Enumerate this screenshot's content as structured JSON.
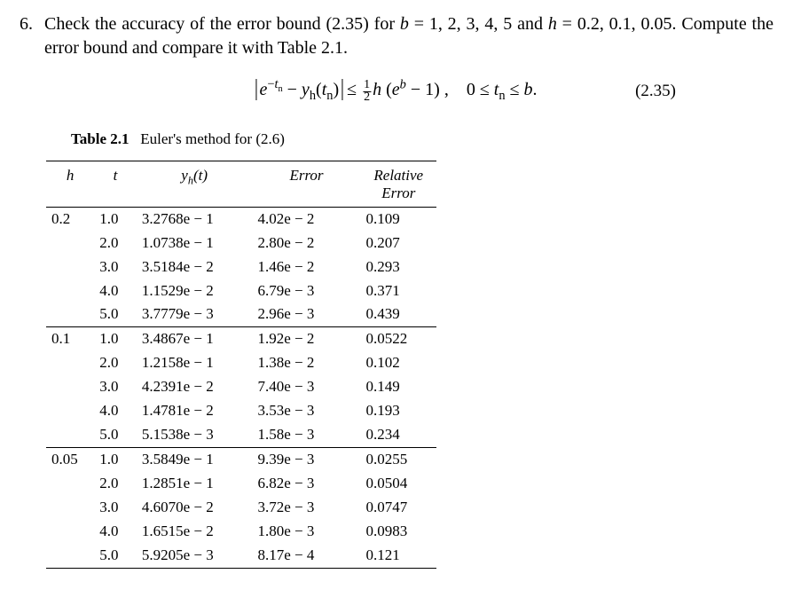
{
  "problem": {
    "number": "6.",
    "text_html": "Check the accuracy of the error bound (2.35) for <i>b</i> = 1, 2, 3, 4, 5 and <i>h</i> = 0.2, 0.1, 0.05. Compute the error bound and compare it with Table 2.1."
  },
  "equation": {
    "number": "(2.35)"
  },
  "table": {
    "caption_label": "Table 2.1",
    "caption_rest": "Euler's method for (2.6)",
    "headers": {
      "h": "h",
      "t": "t",
      "yh": "yₕ(t)",
      "err": "Error",
      "rel1": "Relative",
      "rel2": "Error"
    },
    "groups": [
      {
        "h": "0.2",
        "rows": [
          {
            "t": "1.0",
            "yh": "3.2768e − 1",
            "err": "4.02e − 2",
            "rel": "0.109"
          },
          {
            "t": "2.0",
            "yh": "1.0738e − 1",
            "err": "2.80e − 2",
            "rel": "0.207"
          },
          {
            "t": "3.0",
            "yh": "3.5184e − 2",
            "err": "1.46e − 2",
            "rel": "0.293"
          },
          {
            "t": "4.0",
            "yh": "1.1529e − 2",
            "err": "6.79e − 3",
            "rel": "0.371"
          },
          {
            "t": "5.0",
            "yh": "3.7779e − 3",
            "err": "2.96e − 3",
            "rel": "0.439"
          }
        ]
      },
      {
        "h": "0.1",
        "rows": [
          {
            "t": "1.0",
            "yh": "3.4867e − 1",
            "err": "1.92e − 2",
            "rel": "0.0522"
          },
          {
            "t": "2.0",
            "yh": "1.2158e − 1",
            "err": "1.38e − 2",
            "rel": "0.102"
          },
          {
            "t": "3.0",
            "yh": "4.2391e − 2",
            "err": "7.40e − 3",
            "rel": "0.149"
          },
          {
            "t": "4.0",
            "yh": "1.4781e − 2",
            "err": "3.53e − 3",
            "rel": "0.193"
          },
          {
            "t": "5.0",
            "yh": "5.1538e − 3",
            "err": "1.58e − 3",
            "rel": "0.234"
          }
        ]
      },
      {
        "h": "0.05",
        "rows": [
          {
            "t": "1.0",
            "yh": "3.5849e − 1",
            "err": "9.39e − 3",
            "rel": "0.0255"
          },
          {
            "t": "2.0",
            "yh": "1.2851e − 1",
            "err": "6.82e − 3",
            "rel": "0.0504"
          },
          {
            "t": "3.0",
            "yh": "4.6070e − 2",
            "err": "3.72e − 3",
            "rel": "0.0747"
          },
          {
            "t": "4.0",
            "yh": "1.6515e − 2",
            "err": "1.80e − 3",
            "rel": "0.0983"
          },
          {
            "t": "5.0",
            "yh": "5.9205e − 3",
            "err": "8.17e − 4",
            "rel": "0.121"
          }
        ]
      }
    ]
  },
  "style": {
    "font_family": "Times New Roman serif",
    "body_font_pt": 20,
    "table_font_pt": 17,
    "text_color": "#000000",
    "background": "#ffffff",
    "border_color": "#000000"
  }
}
